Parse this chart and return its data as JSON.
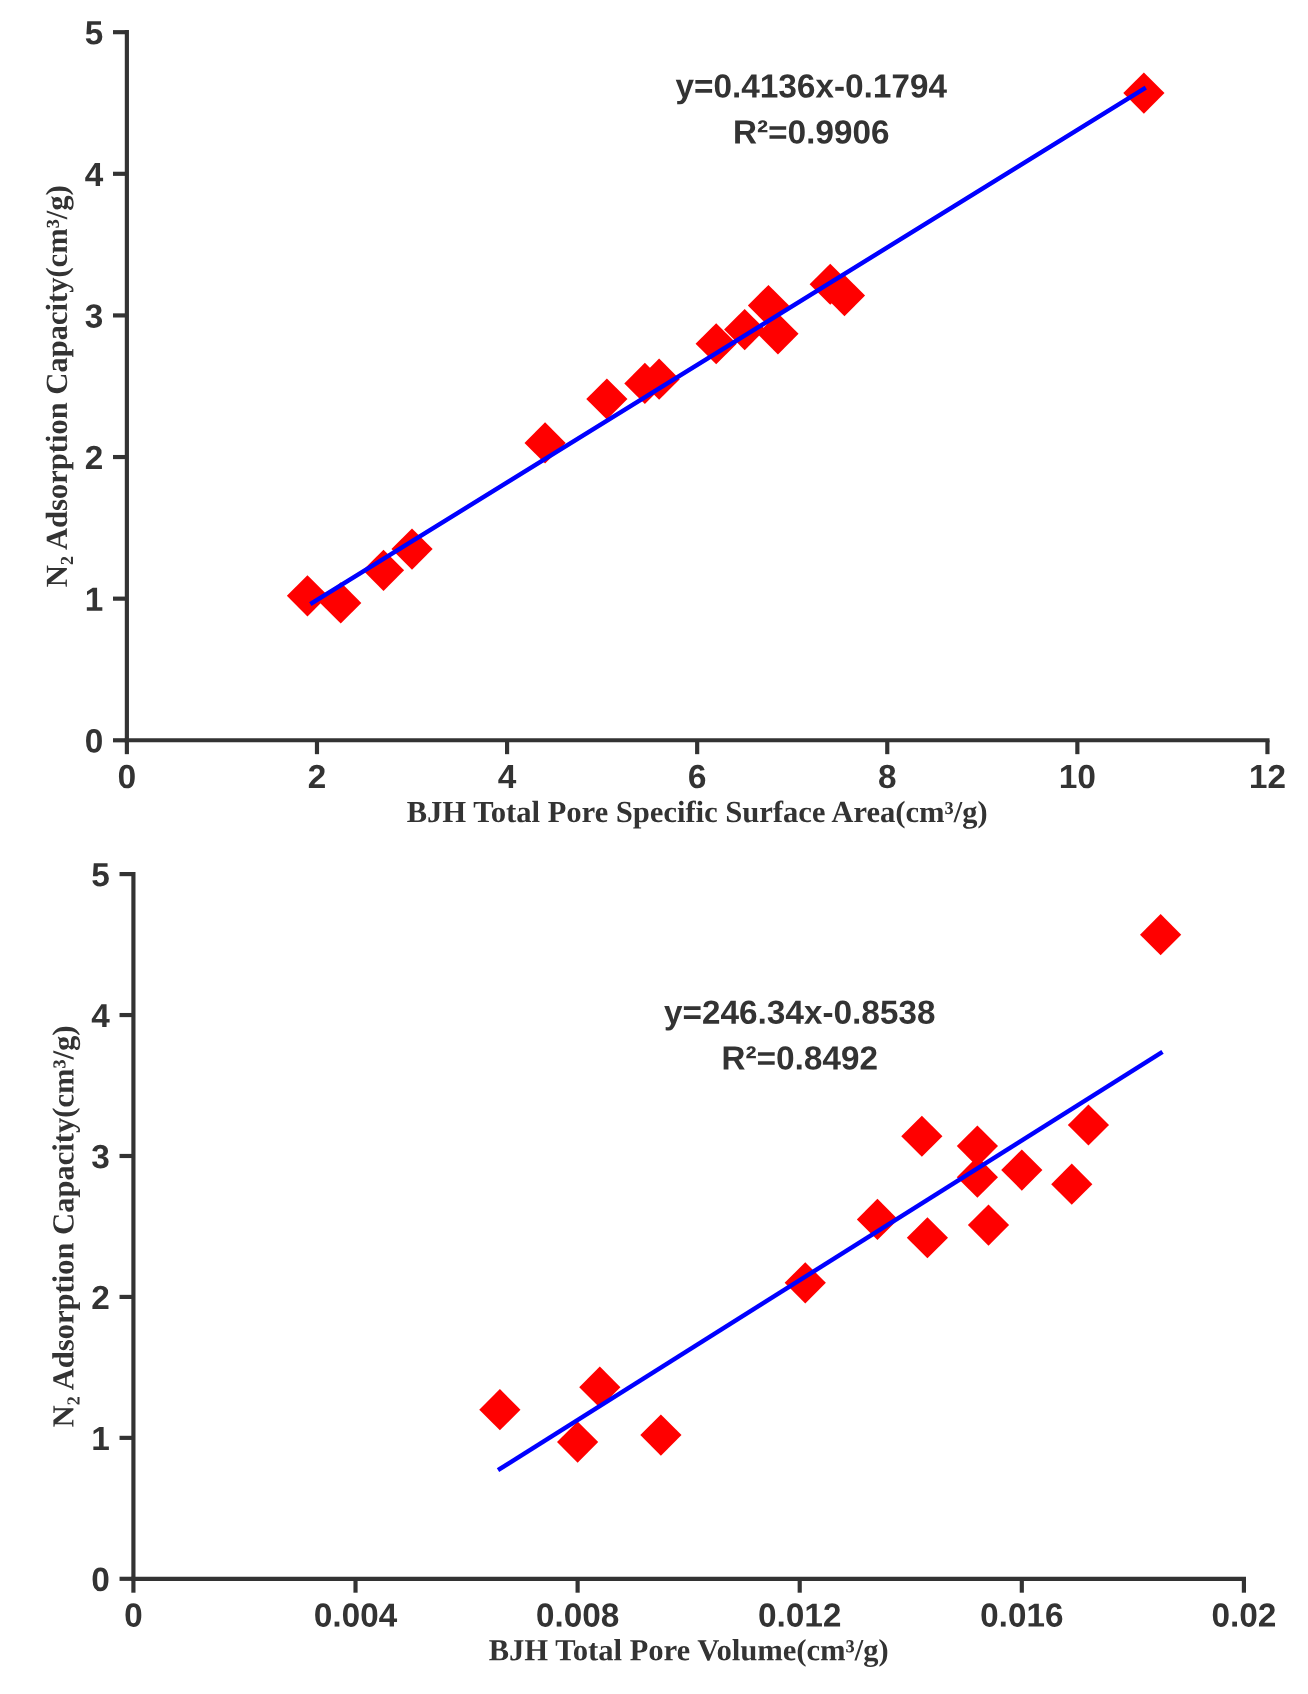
{
  "chart_data": [
    {
      "type": "scatter",
      "xlabel": "BJH Total Pore Specific Surface Area(cm³/g)",
      "ylabel": "N₂ Adsorption Capacity(cm³/g)",
      "annotations": [
        "y=0.4136x-0.1794",
        "R²=0.9906"
      ],
      "xlim": [
        0,
        12
      ],
      "ylim": [
        0,
        5
      ],
      "xticks": [
        0,
        2,
        4,
        6,
        8,
        10,
        12
      ],
      "yticks": [
        0,
        1,
        2,
        3,
        4,
        5
      ],
      "grid": false,
      "legend": false,
      "series": [
        {
          "marker": "diamond",
          "color": "#ff0000",
          "x": [
            1.9,
            2.25,
            2.7,
            3.0,
            4.4,
            5.05,
            5.45,
            5.6,
            6.2,
            6.5,
            6.75,
            6.85,
            7.4,
            7.55,
            10.7
          ],
          "values": [
            1.02,
            0.97,
            1.2,
            1.35,
            2.1,
            2.41,
            2.52,
            2.55,
            2.8,
            2.9,
            3.07,
            2.87,
            3.22,
            3.14,
            4.57
          ]
        },
        {
          "type": "line",
          "color": "#0000ff",
          "x": [
            1.95,
            10.7
          ],
          "values": [
            0.97,
            4.6
          ]
        }
      ]
    },
    {
      "type": "scatter",
      "xlabel": "BJH Total Pore Volume(cm³/g)",
      "ylabel": "N₂ Adsorption Capacity(cm³/g)",
      "annotations": [
        "y=246.34x-0.8538",
        "R²=0.8492"
      ],
      "xlim": [
        0,
        0.02
      ],
      "ylim": [
        0,
        5
      ],
      "xticks": [
        0,
        0.004,
        0.008,
        0.012,
        0.016,
        0.02
      ],
      "yticks": [
        0,
        1,
        2,
        3,
        4,
        5
      ],
      "grid": false,
      "legend": false,
      "series": [
        {
          "marker": "diamond",
          "color": "#ff0000",
          "x": [
            0.0066,
            0.008,
            0.0084,
            0.0095,
            0.0121,
            0.0134,
            0.0142,
            0.0143,
            0.0152,
            0.0152,
            0.0154,
            0.016,
            0.0169,
            0.0172,
            0.0185
          ],
          "values": [
            1.2,
            0.97,
            1.36,
            1.02,
            2.1,
            2.55,
            3.14,
            2.42,
            3.07,
            2.85,
            2.51,
            2.9,
            2.8,
            3.22,
            4.57
          ]
        },
        {
          "type": "line",
          "color": "#0000ff",
          "x": [
            0.0066,
            0.0185
          ],
          "values": [
            0.78,
            3.73
          ]
        }
      ]
    }
  ]
}
